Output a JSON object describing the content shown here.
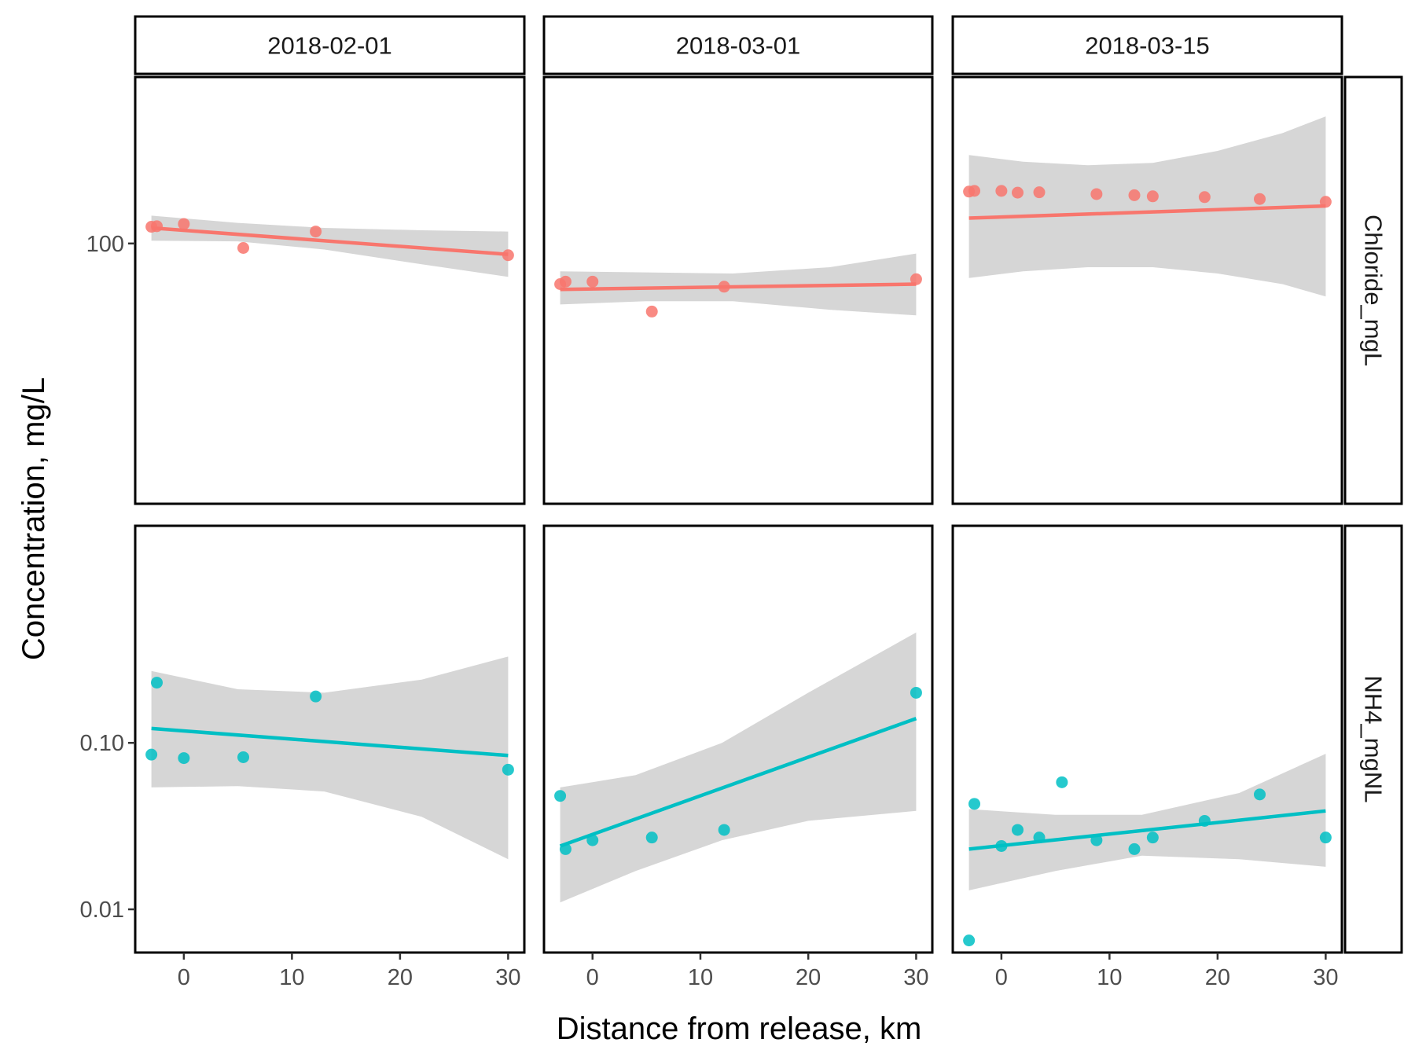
{
  "chart_data": {
    "type": "scatter",
    "facets": {
      "columns": [
        "2018-02-01",
        "2018-03-01",
        "2018-03-15"
      ],
      "rows": [
        "Chloride_mgL",
        "NH4_mgNL"
      ]
    },
    "xlabel": "Distance from release, km",
    "ylabel": "Concentration, mg/L",
    "x_ticks": [
      0,
      10,
      20,
      30
    ],
    "xlim": [
      -4.5,
      31.5
    ],
    "y_scale": "log10",
    "y_ticks": [
      {
        "value": 100,
        "label": "100"
      },
      {
        "value": 0.1,
        "label": "0.10"
      },
      {
        "value": 0.01,
        "label": "0.01"
      }
    ],
    "ylim": [
      0.0055,
      1000
    ],
    "grid": false,
    "legend": "none",
    "colors": {
      "Chloride_mgL": "#f8766d",
      "NH4_mgNL": "#00bfc4",
      "band": "#d6d6d6"
    },
    "panels": [
      {
        "date": "2018-02-01",
        "variable": "Chloride_mgL",
        "points": [
          [
            -3,
            126
          ],
          [
            -2.5,
            127
          ],
          [
            0,
            131
          ],
          [
            5.5,
            94
          ],
          [
            12.2,
            118
          ],
          [
            30,
            85
          ]
        ],
        "fit": {
          "x0": -3,
          "y0": 124,
          "x1": 30,
          "y1": 86
        },
        "band_upper": [
          [
            -3,
            147
          ],
          [
            5,
            133
          ],
          [
            13,
            124
          ],
          [
            22,
            120
          ],
          [
            30,
            118
          ]
        ],
        "band_lower": [
          [
            -3,
            104
          ],
          [
            5,
            103
          ],
          [
            13,
            92
          ],
          [
            22,
            75
          ],
          [
            30,
            63
          ]
        ]
      },
      {
        "date": "2018-03-01",
        "variable": "Chloride_mgL",
        "points": [
          [
            -3,
            57
          ],
          [
            -2.5,
            59
          ],
          [
            0,
            59
          ],
          [
            5.5,
            39
          ],
          [
            12.2,
            55
          ],
          [
            30,
            61
          ]
        ],
        "fit": {
          "x0": -3,
          "y0": 53,
          "x1": 30,
          "y1": 57
        },
        "band_upper": [
          [
            -3,
            68
          ],
          [
            5,
            67
          ],
          [
            13,
            66
          ],
          [
            22,
            72
          ],
          [
            30,
            87
          ]
        ],
        "band_lower": [
          [
            -3,
            43
          ],
          [
            5,
            45
          ],
          [
            13,
            45
          ],
          [
            22,
            40
          ],
          [
            30,
            37
          ]
        ]
      },
      {
        "date": "2018-03-15",
        "variable": "Chloride_mgL",
        "points": [
          [
            -3,
            205
          ],
          [
            -2.5,
            207
          ],
          [
            0,
            207
          ],
          [
            1.5,
            202
          ],
          [
            3.5,
            203
          ],
          [
            8.8,
            198
          ],
          [
            12.3,
            195
          ],
          [
            14,
            192
          ],
          [
            18.8,
            190
          ],
          [
            23.9,
            185
          ],
          [
            30,
            178
          ]
        ],
        "fit": {
          "x0": -3,
          "y0": 142,
          "x1": 30,
          "y1": 168
        },
        "band_upper": [
          [
            -3,
            340
          ],
          [
            2,
            310
          ],
          [
            8,
            295
          ],
          [
            14,
            305
          ],
          [
            20,
            360
          ],
          [
            26,
            460
          ],
          [
            30,
            580
          ]
        ],
        "band_lower": [
          [
            -3,
            62
          ],
          [
            2,
            68
          ],
          [
            8,
            72
          ],
          [
            14,
            72
          ],
          [
            20,
            66
          ],
          [
            26,
            57
          ],
          [
            30,
            48
          ]
        ]
      },
      {
        "date": "2018-02-01",
        "variable": "NH4_mgNL",
        "points": [
          [
            -3,
            0.085
          ],
          [
            -2.5,
            0.23
          ],
          [
            0,
            0.081
          ],
          [
            5.5,
            0.082
          ],
          [
            12.2,
            0.19
          ],
          [
            30,
            0.069
          ]
        ],
        "fit": {
          "x0": -3,
          "y0": 0.122,
          "x1": 30,
          "y1": 0.084
        },
        "band_upper": [
          [
            -3,
            0.27
          ],
          [
            5,
            0.21
          ],
          [
            13,
            0.2
          ],
          [
            22,
            0.24
          ],
          [
            30,
            0.33
          ]
        ],
        "band_lower": [
          [
            -3,
            0.054
          ],
          [
            5,
            0.055
          ],
          [
            13,
            0.051
          ],
          [
            22,
            0.036
          ],
          [
            30,
            0.02
          ]
        ]
      },
      {
        "date": "2018-03-01",
        "variable": "NH4_mgNL",
        "points": [
          [
            -3,
            0.048
          ],
          [
            -2.5,
            0.023
          ],
          [
            0,
            0.026
          ],
          [
            5.5,
            0.027
          ],
          [
            12.2,
            0.03
          ],
          [
            30,
            0.2
          ]
        ],
        "fit": {
          "x0": -3,
          "y0": 0.024,
          "x1": 30,
          "y1": 0.14
        },
        "band_upper": [
          [
            -3,
            0.054
          ],
          [
            4,
            0.064
          ],
          [
            12,
            0.1
          ],
          [
            20,
            0.2
          ],
          [
            30,
            0.46
          ]
        ],
        "band_lower": [
          [
            -3,
            0.011
          ],
          [
            4,
            0.017
          ],
          [
            12,
            0.026
          ],
          [
            20,
            0.034
          ],
          [
            30,
            0.039
          ]
        ]
      },
      {
        "date": "2018-03-15",
        "variable": "NH4_mgNL",
        "points": [
          [
            -3,
            0.0065
          ],
          [
            -2.5,
            0.043
          ],
          [
            0,
            0.024
          ],
          [
            1.5,
            0.03
          ],
          [
            3.5,
            0.027
          ],
          [
            5.6,
            0.058
          ],
          [
            8.8,
            0.026
          ],
          [
            12.3,
            0.023
          ],
          [
            14,
            0.027
          ],
          [
            18.8,
            0.034
          ],
          [
            23.9,
            0.049
          ],
          [
            30,
            0.027
          ]
        ],
        "fit": {
          "x0": -3,
          "y0": 0.023,
          "x1": 30,
          "y1": 0.039
        },
        "band_upper": [
          [
            -3,
            0.04
          ],
          [
            5,
            0.037
          ],
          [
            13,
            0.037
          ],
          [
            22,
            0.05
          ],
          [
            30,
            0.086
          ]
        ],
        "band_lower": [
          [
            -3,
            0.013
          ],
          [
            5,
            0.017
          ],
          [
            13,
            0.021
          ],
          [
            22,
            0.02
          ],
          [
            30,
            0.018
          ]
        ]
      }
    ]
  }
}
